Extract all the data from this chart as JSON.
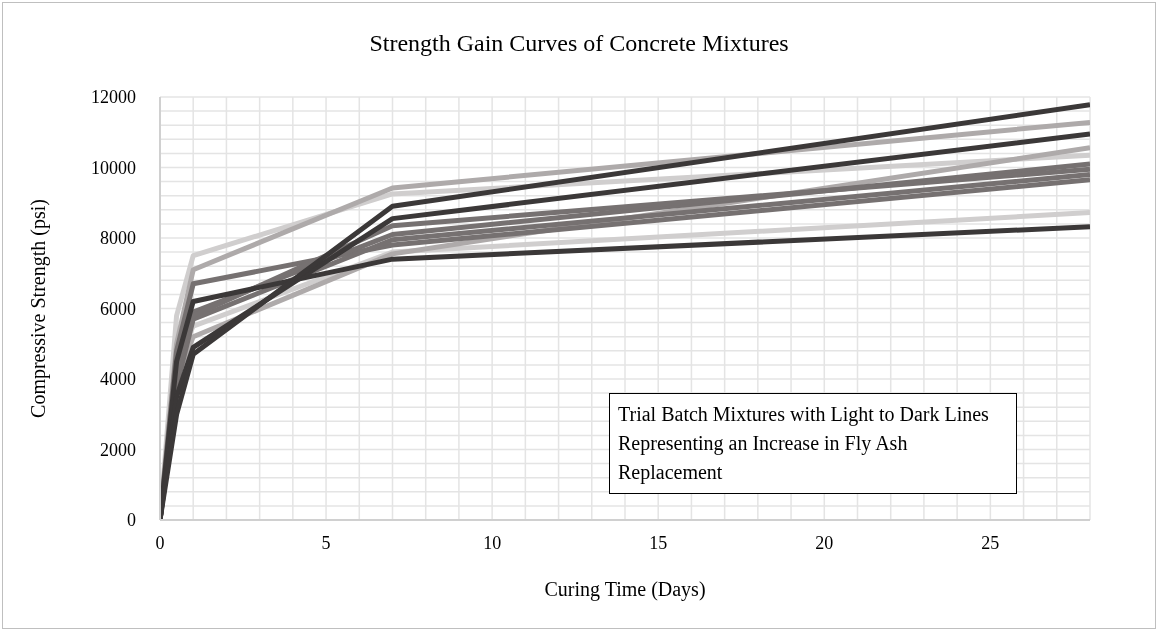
{
  "chart_data": {
    "type": "line",
    "title": "Strength Gain Curves of Concrete Mixtures",
    "xlabel": "Curing Time (Days)",
    "ylabel": "Compressive Strength (psi)",
    "annotations": [
      "Trial Batch Mixtures with Light to Dark Lines Representing an Increase in Fly Ash Replacement"
    ],
    "x": [
      0,
      0.5,
      1,
      7,
      28
    ],
    "series": [
      {
        "color": "#d0cece",
        "values": [
          0,
          5800,
          7500,
          9250,
          10350
        ]
      },
      {
        "color": "#aeaaaa",
        "values": [
          0,
          5000,
          7100,
          9420,
          11280
        ]
      },
      {
        "color": "#d0cece",
        "values": [
          0,
          4500,
          5500,
          7600,
          8720
        ]
      },
      {
        "color": "#aeaaaa",
        "values": [
          0,
          4000,
          5200,
          7550,
          10560
        ]
      },
      {
        "color": "#767171",
        "values": [
          0,
          4800,
          6700,
          7800,
          9650
        ]
      },
      {
        "color": "#767171",
        "values": [
          0,
          4200,
          5900,
          8100,
          10100
        ]
      },
      {
        "color": "#767171",
        "values": [
          0,
          3800,
          5700,
          7950,
          9800
        ]
      },
      {
        "color": "#767171",
        "values": [
          0,
          4000,
          5800,
          8350,
          9950
        ]
      },
      {
        "color": "#3b3838",
        "values": [
          0,
          4500,
          6200,
          7400,
          8320
        ]
      },
      {
        "color": "#3b3838",
        "values": [
          0,
          3500,
          4900,
          8550,
          10950
        ]
      },
      {
        "color": "#3b3838",
        "values": [
          0,
          3000,
          4700,
          8900,
          11780
        ]
      }
    ],
    "xlim": [
      0,
      28
    ],
    "xticks": [
      0,
      {
        "value": 1,
        "label": null
      },
      {
        "value": 2,
        "label": null
      },
      {
        "value": 3,
        "label": null
      },
      {
        "value": 4,
        "label": null
      },
      5,
      {
        "value": 6,
        "label": null
      },
      {
        "value": 7,
        "label": null
      },
      {
        "value": 8,
        "label": null
      },
      {
        "value": 9,
        "label": null
      },
      10,
      {
        "value": 11,
        "label": null
      },
      {
        "value": 12,
        "label": null
      },
      {
        "value": 13,
        "label": null
      },
      {
        "value": 14,
        "label": null
      },
      15,
      {
        "value": 16,
        "label": null
      },
      {
        "value": 17,
        "label": null
      },
      {
        "value": 18,
        "label": null
      },
      {
        "value": 19,
        "label": null
      },
      20,
      {
        "value": 21,
        "label": null
      },
      {
        "value": 22,
        "label": null
      },
      {
        "value": 23,
        "label": null
      },
      {
        "value": 24,
        "label": null
      },
      25,
      {
        "value": 26,
        "label": null
      },
      {
        "value": 27,
        "label": null
      },
      {
        "value": 28,
        "label": null
      }
    ],
    "ylim": [
      0,
      12000
    ],
    "yticks": [
      0,
      {
        "value": 400,
        "label": null
      },
      {
        "value": 800,
        "label": null
      },
      {
        "value": 1200,
        "label": null
      },
      {
        "value": 1600,
        "label": null
      },
      2000,
      {
        "value": 2400,
        "label": null
      },
      {
        "value": 2800,
        "label": null
      },
      {
        "value": 3200,
        "label": null
      },
      {
        "value": 3600,
        "label": null
      },
      4000,
      {
        "value": 4400,
        "label": null
      },
      {
        "value": 4800,
        "label": null
      },
      {
        "value": 5200,
        "label": null
      },
      {
        "value": 5600,
        "label": null
      },
      6000,
      {
        "value": 6400,
        "label": null
      },
      {
        "value": 6800,
        "label": null
      },
      {
        "value": 7200,
        "label": null
      },
      {
        "value": 7600,
        "label": null
      },
      8000,
      {
        "value": 8400,
        "label": null
      },
      {
        "value": 8800,
        "label": null
      },
      {
        "value": 9200,
        "label": null
      },
      {
        "value": 9600,
        "label": null
      },
      10000,
      {
        "value": 10400,
        "label": null
      },
      {
        "value": 10800,
        "label": null
      },
      {
        "value": 11200,
        "label": null
      },
      {
        "value": 11600,
        "label": null
      },
      12000
    ],
    "grid": true,
    "legend": false,
    "marker": "none",
    "line_style": "solid"
  }
}
